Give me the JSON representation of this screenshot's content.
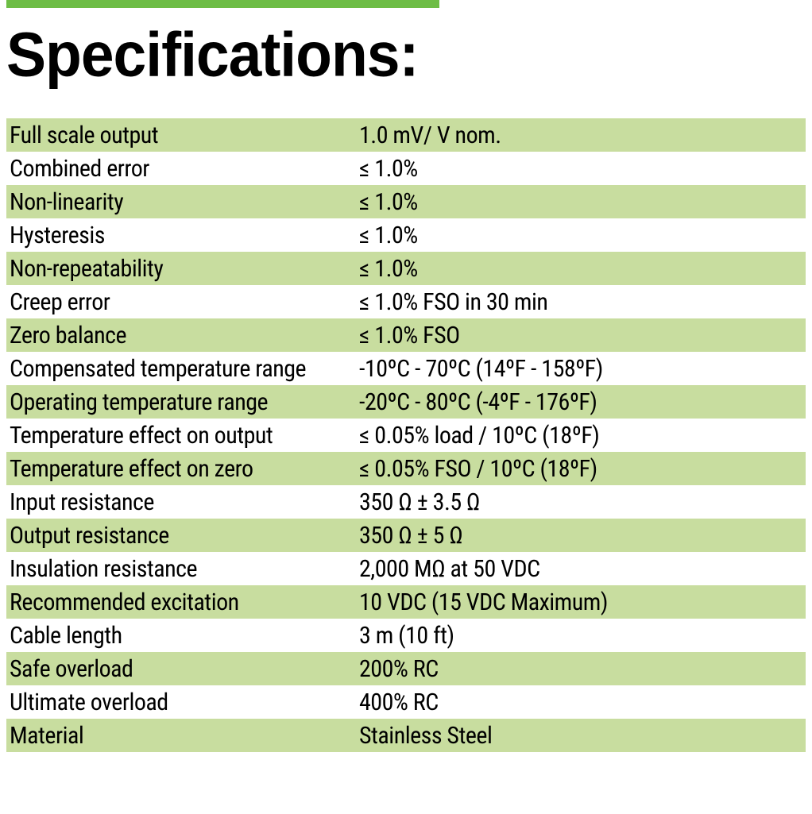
{
  "title": "Specifications:",
  "accent_color": "#6dbd45",
  "row_alt_color": "#c8dd9f",
  "row_base_color": "#ffffff",
  "text_color": "#000000",
  "title_fontsize": 75,
  "cell_fontsize": 30,
  "rows": [
    {
      "label": "Full scale output",
      "value": "1.0 mV/ V nom."
    },
    {
      "label": "Combined error",
      "value": "≤ 1.0%"
    },
    {
      "label": "Non-linearity",
      "value": "≤ 1.0%"
    },
    {
      "label": "Hysteresis",
      "value": "≤ 1.0%"
    },
    {
      "label": "Non-repeatability",
      "value": "≤ 1.0%"
    },
    {
      "label": "Creep error",
      "value": "≤ 1.0% FSO in 30 min"
    },
    {
      "label": "Zero balance",
      "value": "≤ 1.0% FSO"
    },
    {
      "label": "Compensated temperature range",
      "value": "-10ºC - 70ºC (14ºF - 158ºF)"
    },
    {
      "label": "Operating temperature range",
      "value": "-20ºC - 80ºC (-4ºF - 176ºF)"
    },
    {
      "label": "Temperature effect on output",
      "value": "≤ 0.05% load / 10ºC (18ºF)"
    },
    {
      "label": "Temperature effect on zero",
      "value": "≤ 0.05% FSO / 10ºC (18ºF)"
    },
    {
      "label": "Input resistance",
      "value": "350 Ω ± 3.5 Ω"
    },
    {
      "label": "Output resistance",
      "value": "350 Ω ± 5 Ω"
    },
    {
      "label": "Insulation resistance",
      "value": "2,000 MΩ at 50 VDC"
    },
    {
      "label": "Recommended excitation",
      "value": "10 VDC (15 VDC Maximum)"
    },
    {
      "label": "Cable length",
      "value": "3 m (10 ft)"
    },
    {
      "label": "Safe overload",
      "value": "200% RC"
    },
    {
      "label": "Ultimate overload",
      "value": "400% RC"
    },
    {
      "label": "Material",
      "value": "Stainless Steel"
    }
  ]
}
